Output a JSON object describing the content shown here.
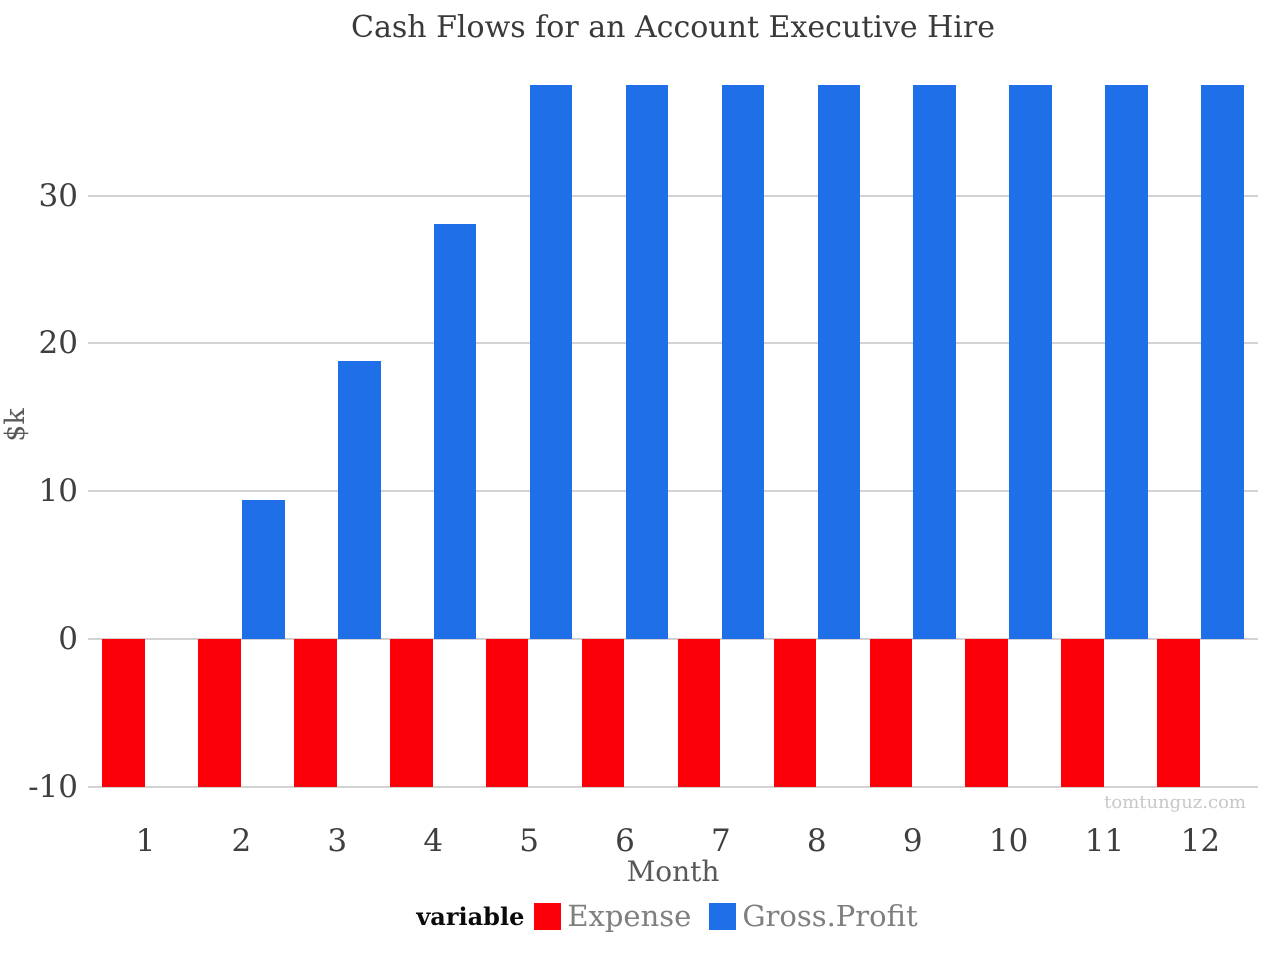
{
  "title": "Cash Flows for an Account Executive Hire",
  "watermark": "tomtunguz.com",
  "legend": {
    "title": "variable",
    "position": "bottom",
    "items": [
      {
        "label": "Expense",
        "color": "#fb0008"
      },
      {
        "label": "Gross.Profit",
        "color": "#1f6fe8"
      }
    ]
  },
  "colors": {
    "expense_red": "#fb0008",
    "gross_profit_blue": "#1f6fe8",
    "gridline": "#d2d2d2",
    "tick_text": "#3f3f3f",
    "axis_title_text": "#595959",
    "legend_text": "#7f7f7f",
    "watermark_text": "#c8c8c8",
    "background": "#ffffff"
  },
  "chart_data": {
    "type": "bar",
    "bar_layout": "dodged",
    "title": "Cash Flows for an Account Executive Hire",
    "xlabel": "Month",
    "ylabel": "$k",
    "categories": [
      "1",
      "2",
      "3",
      "4",
      "5",
      "6",
      "7",
      "8",
      "9",
      "10",
      "11",
      "12"
    ],
    "series": [
      {
        "name": "Expense",
        "color": "#fb0008",
        "values": [
          -10,
          -10,
          -10,
          -10,
          -10,
          -10,
          -10,
          -10,
          -10,
          -10,
          -10,
          -10
        ]
      },
      {
        "name": "Gross.Profit",
        "color": "#1f6fe8",
        "values": [
          0,
          9.4,
          18.8,
          28.1,
          37.5,
          37.5,
          37.5,
          37.5,
          37.5,
          37.5,
          37.5,
          37.5
        ]
      }
    ],
    "yticks": [
      -10,
      0,
      10,
      20,
      30
    ],
    "ylim": [
      -10.9,
      39.2
    ],
    "grid": "horizontal-major-only",
    "legend_title": "variable",
    "legend_position": "bottom"
  }
}
